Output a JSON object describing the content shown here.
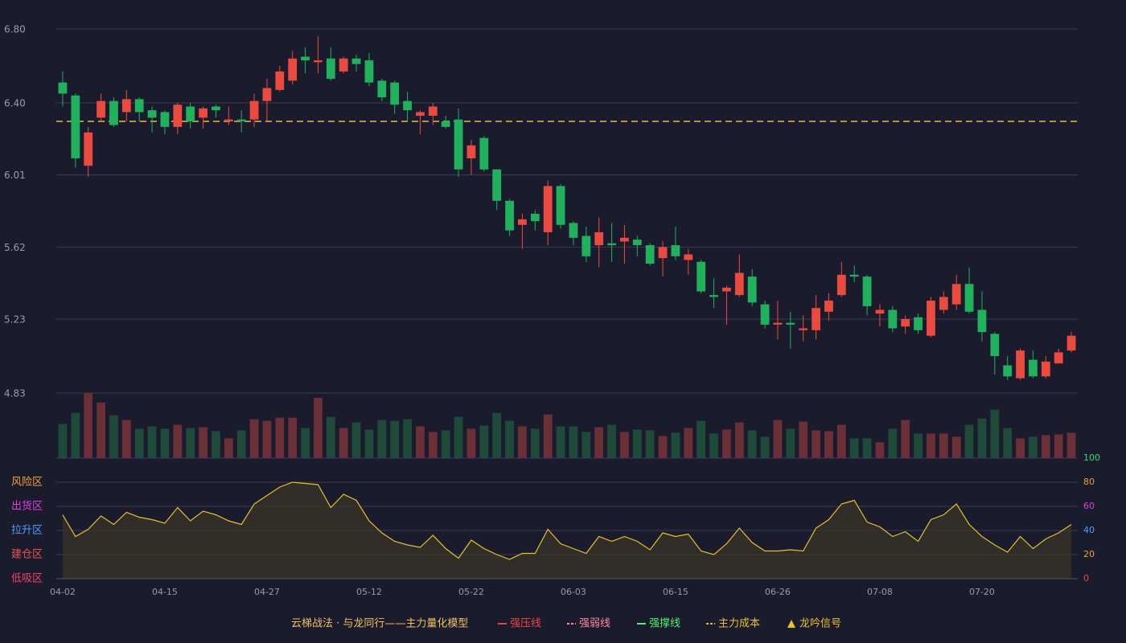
{
  "chart_data": [
    {
      "type": "candlestick",
      "open": [
        6.51,
        6.44,
        6.06,
        6.32,
        6.41,
        6.35,
        6.42,
        6.36,
        6.35,
        6.27,
        6.38,
        6.32,
        6.38,
        6.3,
        6.31,
        6.31,
        6.41,
        6.47,
        6.52,
        6.65,
        6.62,
        6.64,
        6.57,
        6.64,
        6.63,
        6.52,
        6.51,
        6.41,
        6.33,
        6.33,
        6.3,
        6.31,
        6.1,
        6.21,
        6.04,
        5.87,
        5.74,
        5.8,
        5.7,
        5.95,
        5.75,
        5.68,
        5.63,
        5.64,
        5.65,
        5.66,
        5.63,
        5.56,
        5.63,
        5.55,
        5.54,
        5.36,
        5.38,
        5.36,
        5.46,
        5.31,
        5.2,
        5.21,
        5.17,
        5.17,
        5.27,
        5.36,
        5.47,
        5.46,
        5.26,
        5.28,
        5.19,
        5.24,
        5.14,
        5.28,
        5.31,
        5.42,
        5.28,
        5.15,
        4.98,
        4.91,
        5.01,
        4.92,
        4.99,
        5.06
      ],
      "high": [
        6.57,
        6.45,
        6.27,
        6.45,
        6.43,
        6.47,
        6.43,
        6.38,
        6.36,
        6.4,
        6.4,
        6.38,
        6.39,
        6.38,
        6.36,
        6.45,
        6.53,
        6.6,
        6.68,
        6.7,
        6.76,
        6.7,
        6.65,
        6.66,
        6.67,
        6.53,
        6.52,
        6.46,
        6.36,
        6.4,
        6.33,
        6.37,
        6.2,
        6.22,
        6.04,
        5.88,
        5.8,
        5.82,
        5.98,
        5.96,
        5.76,
        5.73,
        5.78,
        5.75,
        5.74,
        5.68,
        5.64,
        5.65,
        5.73,
        5.61,
        5.55,
        5.45,
        5.41,
        5.58,
        5.5,
        5.33,
        5.33,
        5.27,
        5.25,
        5.36,
        5.37,
        5.54,
        5.52,
        5.47,
        5.31,
        5.3,
        5.25,
        5.26,
        5.35,
        5.38,
        5.47,
        5.51,
        5.38,
        5.16,
        5.03,
        5.07,
        5.06,
        5.03,
        5.07,
        5.16
      ],
      "low": [
        6.38,
        6.05,
        6.0,
        6.3,
        6.27,
        6.3,
        6.3,
        6.24,
        6.23,
        6.23,
        6.26,
        6.26,
        6.32,
        6.28,
        6.24,
        6.27,
        6.3,
        6.46,
        6.5,
        6.56,
        6.56,
        6.52,
        6.56,
        6.57,
        6.49,
        6.41,
        6.34,
        6.3,
        6.23,
        6.28,
        6.26,
        6.0,
        6.01,
        6.03,
        5.82,
        5.68,
        5.61,
        5.71,
        5.63,
        5.72,
        5.63,
        5.54,
        5.51,
        5.54,
        5.53,
        5.57,
        5.52,
        5.46,
        5.55,
        5.47,
        5.37,
        5.29,
        5.2,
        5.35,
        5.3,
        5.18,
        5.12,
        5.07,
        5.11,
        5.12,
        5.22,
        5.35,
        5.43,
        5.25,
        5.19,
        5.16,
        5.15,
        5.15,
        5.13,
        5.26,
        5.28,
        5.26,
        5.11,
        4.93,
        4.9,
        4.9,
        4.91,
        4.91,
        4.99,
        5.05
      ],
      "close": [
        6.45,
        6.1,
        6.24,
        6.41,
        6.28,
        6.42,
        6.35,
        6.32,
        6.27,
        6.39,
        6.3,
        6.37,
        6.36,
        6.31,
        6.3,
        6.41,
        6.48,
        6.57,
        6.64,
        6.63,
        6.63,
        6.53,
        6.64,
        6.61,
        6.51,
        6.43,
        6.39,
        6.36,
        6.35,
        6.38,
        6.27,
        6.04,
        6.17,
        6.04,
        5.87,
        5.71,
        5.77,
        5.76,
        5.95,
        5.74,
        5.67,
        5.57,
        5.7,
        5.63,
        5.67,
        5.63,
        5.53,
        5.62,
        5.57,
        5.58,
        5.38,
        5.35,
        5.4,
        5.48,
        5.32,
        5.2,
        5.21,
        5.2,
        5.18,
        5.29,
        5.33,
        5.47,
        5.46,
        5.3,
        5.28,
        5.18,
        5.23,
        5.17,
        5.33,
        5.35,
        5.42,
        5.27,
        5.16,
        5.03,
        4.92,
        5.06,
        4.92,
        5.0,
        5.05,
        5.14
      ],
      "up_color": "#eb4b3f",
      "down_color": "#20b15c",
      "ylim": [
        4.83,
        6.8
      ],
      "yticks": [
        4.83,
        5.23,
        5.62,
        6.01,
        {
          "value": 6.4,
          "label": "6.40"
        },
        {
          "value": 6.8,
          "label": "6.80"
        }
      ],
      "grid": true,
      "cost_line": 6.3,
      "cost_color": "#e6c229"
    },
    {
      "type": "bar",
      "values": [
        43,
        57,
        82,
        70,
        54,
        48,
        37,
        40,
        37,
        42,
        38,
        39,
        34,
        25,
        35,
        49,
        47,
        51,
        51,
        38,
        76,
        52,
        38,
        45,
        36,
        48,
        47,
        49,
        40,
        33,
        35,
        52,
        37,
        41,
        57,
        47,
        40,
        37,
        55,
        40,
        40,
        33,
        39,
        42,
        33,
        36,
        35,
        28,
        32,
        38,
        47,
        31,
        36,
        45,
        35,
        27,
        48,
        37,
        46,
        35,
        34,
        42,
        25,
        25,
        20,
        37,
        48,
        31,
        31,
        31,
        27,
        42,
        50,
        61,
        38,
        25,
        27,
        29,
        30,
        32
      ],
      "up_color": "#6a2f37",
      "down_color": "#1f4a3a",
      "ylim": [
        0,
        82
      ]
    },
    {
      "type": "line",
      "categories": [
        "04-02",
        null,
        null,
        null,
        null,
        null,
        null,
        null,
        "04-15",
        null,
        null,
        null,
        null,
        null,
        null,
        null,
        "04-27",
        null,
        null,
        null,
        null,
        null,
        null,
        null,
        "05-12",
        null,
        null,
        null,
        null,
        null,
        null,
        null,
        "05-22",
        null,
        null,
        null,
        null,
        null,
        null,
        null,
        "06-03",
        null,
        null,
        null,
        null,
        null,
        null,
        null,
        "06-15",
        null,
        null,
        null,
        null,
        null,
        null,
        null,
        "06-26",
        null,
        null,
        null,
        null,
        null,
        null,
        null,
        "07-08",
        null,
        null,
        null,
        null,
        null,
        null,
        null,
        "07-20",
        null,
        null,
        null,
        null,
        null,
        null,
        null
      ],
      "values": [
        53,
        35,
        41,
        52,
        45,
        55,
        51,
        49,
        46,
        59,
        48,
        56,
        53,
        48,
        45,
        62,
        69,
        76,
        80,
        79,
        78,
        59,
        70,
        65,
        48,
        38,
        31,
        28,
        26,
        36,
        25,
        17,
        32,
        25,
        20,
        16,
        21,
        21,
        41,
        29,
        25,
        21,
        35,
        31,
        35,
        31,
        24,
        38,
        35,
        37,
        23,
        20,
        29,
        42,
        30,
        23,
        23,
        24,
        23,
        42,
        49,
        62,
        65,
        47,
        43,
        35,
        39,
        31,
        49,
        53,
        62,
        45,
        35,
        28,
        22,
        35,
        25,
        33,
        38,
        45
      ],
      "color": "#e6c229",
      "fill": "#3a3428",
      "ylim": [
        0,
        100
      ],
      "yticks": [
        0,
        20,
        40,
        60,
        80,
        100
      ],
      "ytick_colors": [
        "#ef4444",
        "#f0a030",
        "#4a9eff",
        "#e040e0",
        "#f0a030",
        "#30e060"
      ],
      "zones": [
        {
          "value": 80,
          "label": "风险区",
          "color": "#f0a030"
        },
        {
          "value": 60,
          "label": "出货区",
          "color": "#e040e0"
        },
        {
          "value": 40,
          "label": "拉升区",
          "color": "#4a9eff"
        },
        {
          "value": 20,
          "label": "建仓区",
          "color": "#ef5350"
        },
        {
          "value": 0,
          "label": "低吸区",
          "color": "#ef4466"
        }
      ],
      "grid": true
    }
  ],
  "legend": {
    "title": "云梯战法 · 与龙同行——主力量化模型",
    "title_color": "#f0c060",
    "items": [
      {
        "name": "强压线",
        "color": "#ef4444",
        "style": "solid"
      },
      {
        "name": "强弱线",
        "color": "#ff8aa0",
        "style": "dashed"
      },
      {
        "name": "强撑线",
        "color": "#50f070",
        "style": "solid"
      },
      {
        "name": "主力成本",
        "color": "#e6c229",
        "style": "dashed"
      },
      {
        "name": "龙吟信号",
        "color": "#e6c229",
        "style": "triangle"
      }
    ]
  }
}
